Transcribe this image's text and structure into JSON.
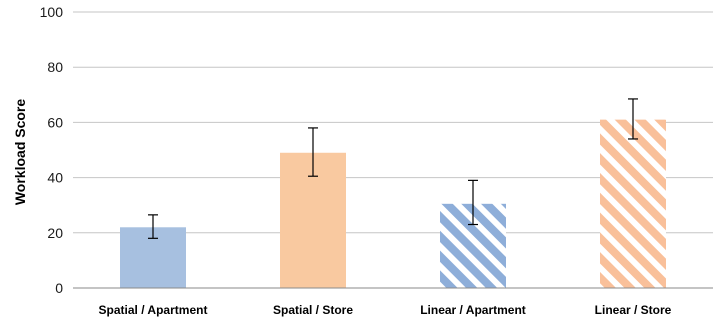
{
  "chart_data": {
    "type": "bar",
    "title": "",
    "xlabel": "",
    "ylabel": "Workload Score",
    "ylim": [
      0,
      100
    ],
    "yticks": [
      0,
      20,
      40,
      60,
      80,
      100
    ],
    "grid": true,
    "categories": [
      "Spatial / Apartment",
      "Spatial / Store",
      "Linear / Apartment",
      "Linear / Store"
    ],
    "values": [
      22,
      49,
      30.5,
      61
    ],
    "error_low": [
      18,
      40.5,
      23,
      54
    ],
    "error_high": [
      26.5,
      58,
      39,
      68.5
    ],
    "colors": [
      "#a7c0e0",
      "#f9c9a0",
      "#8eaed9",
      "#f9c09a"
    ],
    "patterns": [
      "solid",
      "solid",
      "diagonal-stripes",
      "diagonal-stripes"
    ]
  }
}
